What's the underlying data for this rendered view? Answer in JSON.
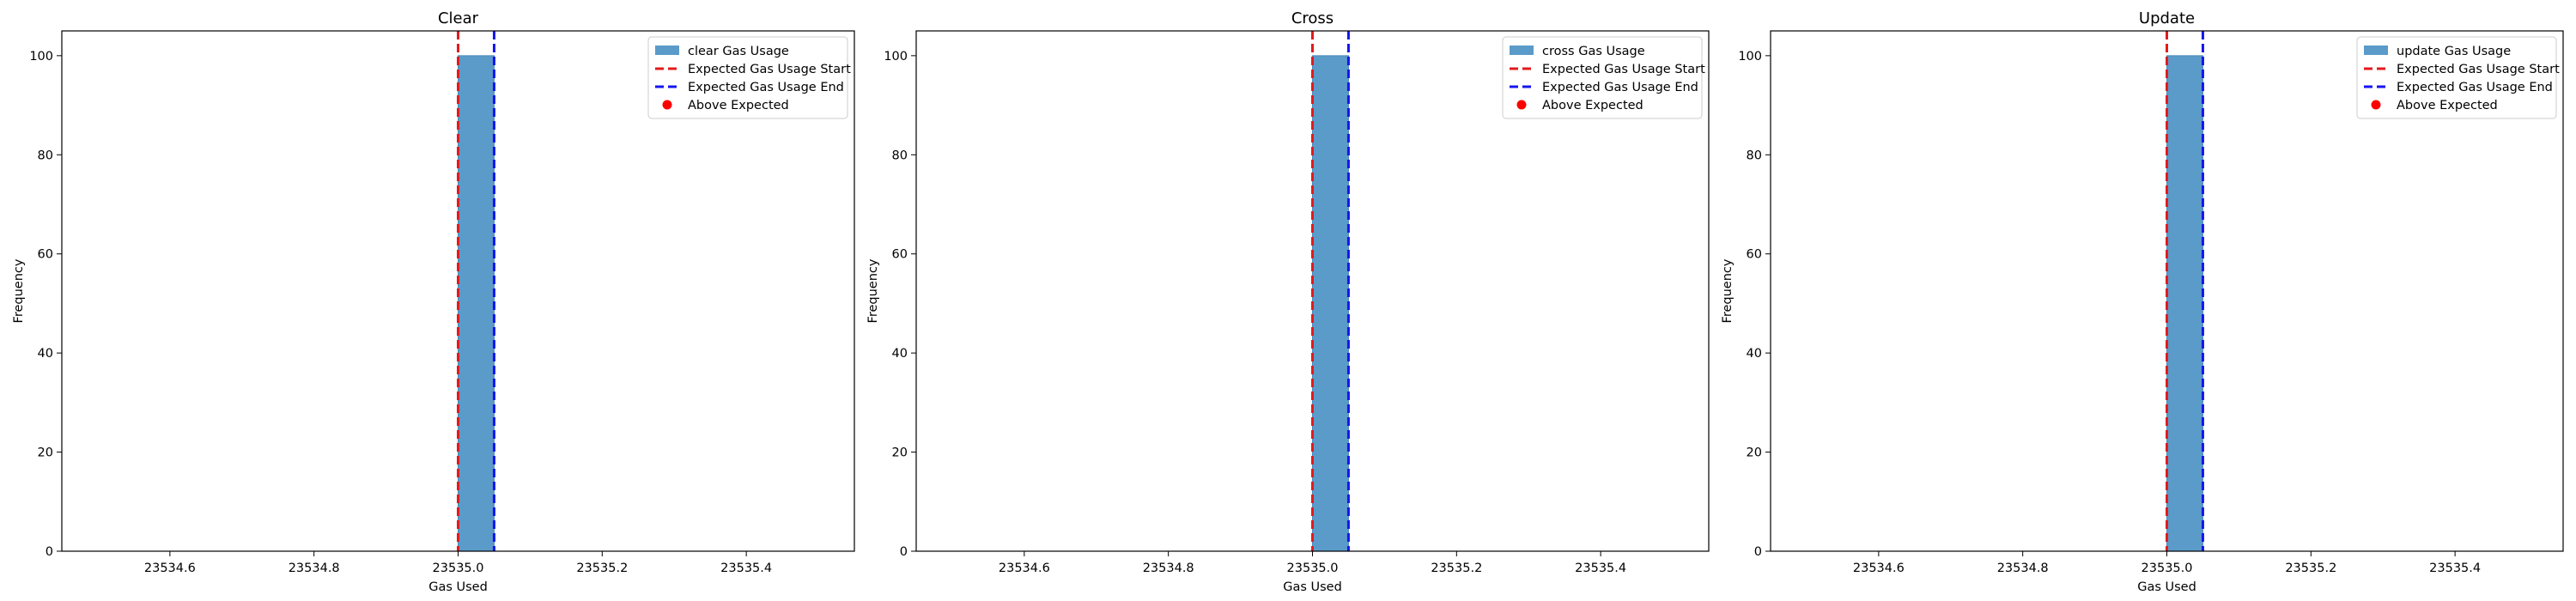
{
  "chart_data": [
    {
      "type": "bar",
      "title": "Clear",
      "xlabel": "Gas Used",
      "ylabel": "Frequency",
      "xlim": [
        23534.45,
        23535.55
      ],
      "ylim": [
        0,
        105
      ],
      "xticks": [
        "23534.6",
        "23534.8",
        "23535.0",
        "23535.2",
        "23535.4"
      ],
      "yticks": [
        "0",
        "20",
        "40",
        "60",
        "80",
        "100"
      ],
      "bars": [
        {
          "x_start": 23535.0,
          "x_end": 23535.05,
          "value": 100
        }
      ],
      "expected_start": 23535.0,
      "expected_end": 23535.05,
      "above_expected": [],
      "legend": [
        "clear Gas Usage",
        "Expected Gas Usage Start",
        "Expected Gas Usage End",
        "Above Expected"
      ],
      "legend_position": "top-right",
      "grid": false
    },
    {
      "type": "bar",
      "title": "Cross",
      "xlabel": "Gas Used",
      "ylabel": "Frequency",
      "xlim": [
        23534.45,
        23535.55
      ],
      "ylim": [
        0,
        105
      ],
      "xticks": [
        "23534.6",
        "23534.8",
        "23535.0",
        "23535.2",
        "23535.4"
      ],
      "yticks": [
        "0",
        "20",
        "40",
        "60",
        "80",
        "100"
      ],
      "bars": [
        {
          "x_start": 23535.0,
          "x_end": 23535.05,
          "value": 100
        }
      ],
      "expected_start": 23535.0,
      "expected_end": 23535.05,
      "above_expected": [],
      "legend": [
        "cross Gas Usage",
        "Expected Gas Usage Start",
        "Expected Gas Usage End",
        "Above Expected"
      ],
      "legend_position": "top-right",
      "grid": false
    },
    {
      "type": "bar",
      "title": "Update",
      "xlabel": "Gas Used",
      "ylabel": "Frequency",
      "xlim": [
        23534.45,
        23535.55
      ],
      "ylim": [
        0,
        105
      ],
      "xticks": [
        "23534.6",
        "23534.8",
        "23535.0",
        "23535.2",
        "23535.4"
      ],
      "yticks": [
        "0",
        "20",
        "40",
        "60",
        "80",
        "100"
      ],
      "bars": [
        {
          "x_start": 23535.0,
          "x_end": 23535.05,
          "value": 100
        }
      ],
      "expected_start": 23535.0,
      "expected_end": 23535.05,
      "above_expected": [],
      "legend": [
        "update Gas Usage",
        "Expected Gas Usage Start",
        "Expected Gas Usage End",
        "Above Expected"
      ],
      "legend_position": "top-right",
      "grid": false
    }
  ],
  "colors": {
    "bar": "#5b9bc9",
    "bar_edge": "#4a88b8",
    "expected_start": "#e31a1c",
    "expected_end": "#1515f0",
    "above_expected": "#ff0000"
  }
}
